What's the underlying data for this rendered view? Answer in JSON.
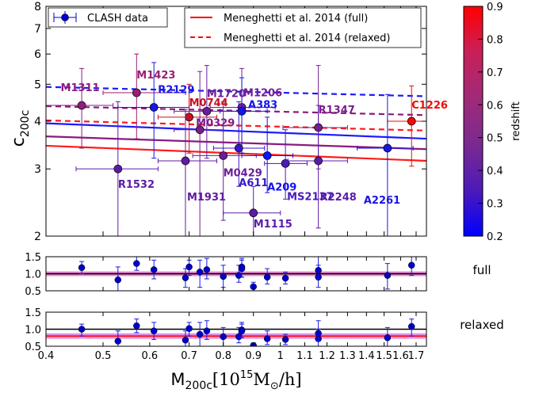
{
  "chart_data": [
    {
      "type": "scatter",
      "panel": "main",
      "xscale": "log",
      "yscale": "log",
      "xlim": [
        0.4,
        1.77
      ],
      "ylim": [
        2,
        8
      ],
      "xlabel": "M",
      "xlabel_sub": "200c",
      "xlabel_unit": "[10",
      "xlabel_exp": "15",
      "xlabel_unit2": "M",
      "xlabel_sun": "⊙",
      "xlabel_unit3": "/h]",
      "ylabel": "c",
      "ylabel_sub": "200c",
      "yticks": [
        2,
        3,
        4,
        5,
        6,
        7,
        8
      ],
      "xticks": [
        0.4,
        0.5,
        0.6,
        0.7,
        0.8,
        0.9,
        1.0,
        1.1,
        1.2,
        1.3,
        1.4,
        1.5,
        1.6,
        1.7
      ],
      "legend_left": {
        "label": "CLASH data",
        "position": "top-left"
      },
      "legend_right": {
        "entries": [
          {
            "label": "Meneghetti et al. 2014 (full)",
            "style": "solid",
            "color": "#ff0000"
          },
          {
            "label": "Meneghetti et al. 2014 (relaxed)",
            "style": "dashed",
            "color": "#ff0000"
          }
        ],
        "position": "top-center"
      },
      "colorbar": {
        "label": "redshift",
        "min": 0.2,
        "max": 0.9,
        "ticks": [
          "0.9",
          "0.8",
          "0.7",
          "0.6",
          "0.5",
          "0.4",
          "0.3",
          "0.2"
        ],
        "tick_values": [
          0.9,
          0.8,
          0.7,
          0.6,
          0.5,
          0.4,
          0.3,
          0.2
        ],
        "colors": [
          "#0000ff",
          "#4c1ab8",
          "#7a2a90",
          "#a02a78",
          "#c8205a",
          "#ff0000"
        ]
      },
      "clusters": [
        {
          "name": "M1311",
          "x": 0.46,
          "y": 4.4,
          "z": 0.494,
          "xerr": [
            0.4,
            0.52
          ],
          "yerr": [
            3.4,
            5.5
          ],
          "color": "#8a1f80",
          "label_color": "#8a1f80"
        },
        {
          "name": "M1423",
          "x": 0.57,
          "y": 4.75,
          "z": 0.545,
          "xerr": [
            0.5,
            0.69
          ],
          "yerr": [
            3.6,
            6.0
          ],
          "color": "#9a1e72",
          "label_color": "#9a1e72"
        },
        {
          "name": "R2129",
          "x": 0.61,
          "y": 4.35,
          "z": 0.234,
          "xerr": [
            0.53,
            0.7
          ],
          "yerr": [
            3.2,
            5.7
          ],
          "color": "#1a18e0",
          "label_color": "#1a18e0"
        },
        {
          "name": "M0744",
          "x": 0.7,
          "y": 4.1,
          "z": 0.686,
          "xerr": [
            0.62,
            0.78
          ],
          "yerr": [
            3.3,
            5.0
          ],
          "color": "#c8101e",
          "label_color": "#c8101e"
        },
        {
          "name": "M1720",
          "x": 0.75,
          "y": 4.25,
          "z": 0.387,
          "xerr": [
            0.66,
            0.86
          ],
          "yerr": [
            3.2,
            5.6
          ],
          "color": "#6a1e9a",
          "label_color": "#6a1e9a"
        },
        {
          "name": "M0329",
          "x": 0.73,
          "y": 3.8,
          "z": 0.45,
          "xerr": [
            0.66,
            0.8
          ],
          "yerr": [
            2.0,
            5.4
          ],
          "color": "#7a1e8e",
          "label_color": "#7a1e8e"
        },
        {
          "name": "M1206",
          "x": 0.86,
          "y": 4.35,
          "z": 0.44,
          "xerr": [
            0.76,
            0.98
          ],
          "yerr": [
            3.3,
            5.5
          ],
          "color": "#751e92",
          "label_color": "#751e92"
        },
        {
          "name": "A383",
          "x": 0.86,
          "y": 4.25,
          "z": 0.187,
          "xerr": [
            0.79,
            0.95
          ],
          "yerr": [
            3.3,
            5.2
          ],
          "color": "#1414ee",
          "label_color": "#1414ee"
        },
        {
          "name": "R1347",
          "x": 1.16,
          "y": 3.85,
          "z": 0.451,
          "xerr": [
            1.01,
            1.3
          ],
          "yerr": [
            3.0,
            5.6
          ],
          "color": "#7a1e8e",
          "label_color": "#7a1e8e"
        },
        {
          "name": "C1226",
          "x": 1.67,
          "y": 4.0,
          "z": 0.89,
          "xerr": [
            1.52,
            1.77
          ],
          "yerr": [
            3.05,
            4.95
          ],
          "color": "#f40808",
          "label_color": "#f40808"
        },
        {
          "name": "R1532",
          "x": 0.53,
          "y": 3.0,
          "z": 0.345,
          "xerr": [
            0.45,
            0.62
          ],
          "yerr": [
            2.0,
            4.5
          ],
          "color": "#5a1ca6",
          "label_color": "#5a1ca6"
        },
        {
          "name": "M0429",
          "x": 0.8,
          "y": 3.25,
          "z": 0.399,
          "xerr": [
            0.71,
            0.91
          ],
          "yerr": [
            2.2,
            4.5
          ],
          "color": "#6a1e9a",
          "label_color": "#6a1e9a"
        },
        {
          "name": "M1931",
          "x": 0.69,
          "y": 3.15,
          "z": 0.352,
          "xerr": [
            0.62,
            0.78
          ],
          "yerr": [
            2.0,
            4.3
          ],
          "color": "#601ca2",
          "label_color": "#601ca2"
        },
        {
          "name": "A611",
          "x": 0.85,
          "y": 3.4,
          "z": 0.288,
          "xerr": [
            0.77,
            0.94
          ],
          "yerr": [
            2.7,
            4.5
          ],
          "color": "#3a18c8",
          "label_color": "#3a18c8"
        },
        {
          "name": "A209",
          "x": 0.95,
          "y": 3.25,
          "z": 0.206,
          "xerr": [
            0.86,
            1.05
          ],
          "yerr": [
            2.6,
            4.1
          ],
          "color": "#1212f2",
          "label_color": "#1212f2"
        },
        {
          "name": "MS2137",
          "x": 1.02,
          "y": 3.1,
          "z": 0.313,
          "xerr": [
            0.94,
            1.11
          ],
          "yerr": [
            2.5,
            3.8
          ],
          "color": "#4a1abc",
          "label_color": "#4a1abc"
        },
        {
          "name": "R2248",
          "x": 1.16,
          "y": 3.15,
          "z": 0.348,
          "xerr": [
            1.03,
            1.3
          ],
          "yerr": [
            2.1,
            4.4
          ],
          "color": "#5a1ca8",
          "label_color": "#5a1ca8"
        },
        {
          "name": "M1115",
          "x": 0.9,
          "y": 2.3,
          "z": 0.352,
          "xerr": [
            0.8,
            1.0
          ],
          "yerr": [
            2.0,
            2.7
          ],
          "color": "#5a1ca8",
          "label_color": "#5a1ca8"
        },
        {
          "name": "A2261",
          "x": 1.52,
          "y": 3.4,
          "z": 0.224,
          "xerr": [
            1.35,
            1.68
          ],
          "yerr": [
            2.0,
            4.7
          ],
          "color": "#1a16e4",
          "label_color": "#1a16e4"
        }
      ],
      "model_lines": [
        {
          "z": 0.2,
          "color": "#1a1aff",
          "style": "solid",
          "y_at_x0": 3.95,
          "y_at_x1": 3.6
        },
        {
          "z": 0.5,
          "color": "#8a1a80",
          "style": "solid",
          "y_at_x0": 3.65,
          "y_at_x1": 3.38
        },
        {
          "z": 0.9,
          "color": "#ff1a1a",
          "style": "solid",
          "y_at_x0": 3.45,
          "y_at_x1": 3.15
        },
        {
          "z": 0.2,
          "color": "#1a1aff",
          "style": "dashed",
          "y_at_x0": 4.92,
          "y_at_x1": 4.65
        },
        {
          "z": 0.5,
          "color": "#8a1a80",
          "style": "dashed",
          "y_at_x0": 4.38,
          "y_at_x1": 4.15
        },
        {
          "z": 0.9,
          "color": "#ff1a1a",
          "style": "dashed",
          "y_at_x0": 4.02,
          "y_at_x1": 3.78
        }
      ]
    },
    {
      "type": "scatter",
      "panel": "ratio-full",
      "label": "full",
      "ylim": [
        0.5,
        1.5
      ],
      "yticks": [
        "1.5",
        "1.0",
        "0.5"
      ],
      "ytick_values": [
        1.5,
        1.0,
        0.5
      ],
      "band": [
        0.93,
        1.07
      ],
      "points": [
        {
          "x": 0.46,
          "y": 1.18,
          "err": [
            1.0,
            1.36
          ]
        },
        {
          "x": 0.53,
          "y": 0.82,
          "err": [
            0.5,
            1.2
          ]
        },
        {
          "x": 0.57,
          "y": 1.3,
          "err": [
            1.1,
            1.5
          ]
        },
        {
          "x": 0.61,
          "y": 1.12,
          "err": [
            0.85,
            1.4
          ]
        },
        {
          "x": 0.69,
          "y": 0.88,
          "err": [
            0.6,
            1.15
          ]
        },
        {
          "x": 0.7,
          "y": 1.2,
          "err": [
            0.95,
            1.4
          ]
        },
        {
          "x": 0.73,
          "y": 1.05,
          "err": [
            0.6,
            1.4
          ]
        },
        {
          "x": 0.75,
          "y": 1.12,
          "err": [
            0.85,
            1.45
          ]
        },
        {
          "x": 0.8,
          "y": 0.92,
          "err": [
            0.6,
            1.25
          ]
        },
        {
          "x": 0.85,
          "y": 0.95,
          "err": [
            0.75,
            1.25
          ]
        },
        {
          "x": 0.86,
          "y": 1.2,
          "err": [
            0.9,
            1.45
          ]
        },
        {
          "x": 0.86,
          "y": 1.15,
          "err": [
            0.9,
            1.4
          ]
        },
        {
          "x": 0.9,
          "y": 0.62,
          "err": [
            0.5,
            0.75
          ]
        },
        {
          "x": 0.95,
          "y": 0.9,
          "err": [
            0.7,
            1.15
          ]
        },
        {
          "x": 1.02,
          "y": 0.87,
          "err": [
            0.7,
            1.05
          ]
        },
        {
          "x": 1.16,
          "y": 0.9,
          "err": [
            0.6,
            1.25
          ]
        },
        {
          "x": 1.16,
          "y": 1.1,
          "err": [
            0.85,
            1.5
          ]
        },
        {
          "x": 1.52,
          "y": 0.95,
          "err": [
            0.55,
            1.3
          ]
        },
        {
          "x": 1.67,
          "y": 1.25,
          "err": [
            0.95,
            1.5
          ]
        }
      ]
    },
    {
      "type": "scatter",
      "panel": "ratio-relaxed",
      "label": "relaxed",
      "ylim": [
        0.5,
        1.5
      ],
      "yticks": [
        "1.5",
        "1.0",
        "0.5"
      ],
      "ytick_values": [
        1.5,
        1.0,
        0.5
      ],
      "band": [
        0.72,
        0.88
      ],
      "points": [
        {
          "x": 0.46,
          "y": 1.0,
          "err": [
            0.8,
            1.15
          ]
        },
        {
          "x": 0.53,
          "y": 0.65,
          "err": [
            0.5,
            0.95
          ]
        },
        {
          "x": 0.57,
          "y": 1.1,
          "err": [
            0.9,
            1.3
          ]
        },
        {
          "x": 0.61,
          "y": 0.95,
          "err": [
            0.7,
            1.2
          ]
        },
        {
          "x": 0.69,
          "y": 0.68,
          "err": [
            0.5,
            0.95
          ]
        },
        {
          "x": 0.7,
          "y": 1.02,
          "err": [
            0.8,
            1.2
          ]
        },
        {
          "x": 0.73,
          "y": 0.85,
          "err": [
            0.5,
            1.2
          ]
        },
        {
          "x": 0.75,
          "y": 0.95,
          "err": [
            0.7,
            1.25
          ]
        },
        {
          "x": 0.8,
          "y": 0.78,
          "err": [
            0.5,
            1.05
          ]
        },
        {
          "x": 0.85,
          "y": 0.78,
          "err": [
            0.6,
            1.05
          ]
        },
        {
          "x": 0.86,
          "y": 0.98,
          "err": [
            0.75,
            1.2
          ]
        },
        {
          "x": 0.86,
          "y": 0.95,
          "err": [
            0.75,
            1.15
          ]
        },
        {
          "x": 0.9,
          "y": 0.52,
          "err": [
            0.45,
            0.6
          ]
        },
        {
          "x": 0.95,
          "y": 0.72,
          "err": [
            0.55,
            0.95
          ]
        },
        {
          "x": 1.02,
          "y": 0.7,
          "err": [
            0.55,
            0.85
          ]
        },
        {
          "x": 1.16,
          "y": 0.72,
          "err": [
            0.5,
            1.0
          ]
        },
        {
          "x": 1.16,
          "y": 0.88,
          "err": [
            0.65,
            1.25
          ]
        },
        {
          "x": 1.52,
          "y": 0.75,
          "err": [
            0.45,
            1.05
          ]
        },
        {
          "x": 1.67,
          "y": 1.08,
          "err": [
            0.8,
            1.3
          ]
        }
      ]
    }
  ]
}
